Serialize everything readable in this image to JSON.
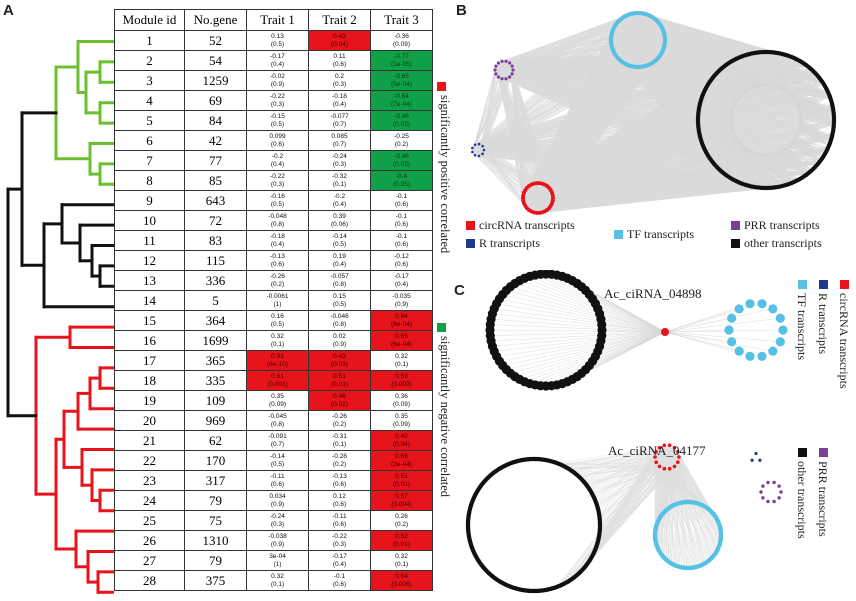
{
  "panel_labels": {
    "a": "A",
    "b": "B",
    "c": "C"
  },
  "table": {
    "headers": [
      "Module id",
      "No.gene",
      "Trait 1",
      "Trait 2",
      "Trait 3"
    ],
    "rows": [
      {
        "id": "1",
        "n": "52",
        "t": [
          [
            "0.13",
            "(0.5)",
            ""
          ],
          [
            "0.43",
            "(0.04)",
            "pos"
          ],
          [
            "-0.36",
            "(0.09)",
            ""
          ]
        ]
      },
      {
        "id": "2",
        "n": "54",
        "t": [
          [
            "-0.17",
            "(0.4)",
            ""
          ],
          [
            "0.11",
            "(0.6)",
            ""
          ],
          [
            "-0.77",
            "(1e-05)",
            "neg"
          ]
        ]
      },
      {
        "id": "3",
        "n": "1259",
        "t": [
          [
            "-0.02",
            "(0.9)",
            ""
          ],
          [
            "0.2",
            "(0.3)",
            ""
          ],
          [
            "-0.65",
            "(5e-04)",
            "neg"
          ]
        ]
      },
      {
        "id": "4",
        "n": "69",
        "t": [
          [
            "-0.22",
            "(0.3)",
            ""
          ],
          [
            "-0.18",
            "(0.4)",
            ""
          ],
          [
            "-0.64",
            "(7e-04)",
            "neg"
          ]
        ]
      },
      {
        "id": "5",
        "n": "84",
        "t": [
          [
            "-0.15",
            "(0.5)",
            ""
          ],
          [
            "-0.077",
            "(0.7)",
            ""
          ],
          [
            "-0.46",
            "(0.02)",
            "neg"
          ]
        ]
      },
      {
        "id": "6",
        "n": "42",
        "t": [
          [
            "0.099",
            "(0.6)",
            ""
          ],
          [
            "0.085",
            "(0.7)",
            ""
          ],
          [
            "-0.25",
            "(0.2)",
            ""
          ]
        ]
      },
      {
        "id": "7",
        "n": "77",
        "t": [
          [
            "-0.2",
            "(0.4)",
            ""
          ],
          [
            "-0.24",
            "(0.3)",
            ""
          ],
          [
            "-0.46",
            "(0.02)",
            "neg"
          ]
        ]
      },
      {
        "id": "8",
        "n": "85",
        "t": [
          [
            "-0.22",
            "(0.3)",
            ""
          ],
          [
            "-0.32",
            "(0.1)",
            ""
          ],
          [
            "-0.4",
            "(0.05)",
            "neg"
          ]
        ]
      },
      {
        "id": "9",
        "n": "643",
        "t": [
          [
            "-0.16",
            "(0.5)",
            ""
          ],
          [
            "-0.2",
            "(0.4)",
            ""
          ],
          [
            "-0.1",
            "(0.6)",
            ""
          ]
        ]
      },
      {
        "id": "10",
        "n": "72",
        "t": [
          [
            "-0.048",
            "(0.8)",
            ""
          ],
          [
            "0.39",
            "(0.06)",
            ""
          ],
          [
            "-0.1",
            "(0.6)",
            ""
          ]
        ]
      },
      {
        "id": "11",
        "n": "83",
        "t": [
          [
            "-0.18",
            "(0.4)",
            ""
          ],
          [
            "-0.14",
            "(0.5)",
            ""
          ],
          [
            "-0.1",
            "(0.6)",
            ""
          ]
        ]
      },
      {
        "id": "12",
        "n": "115",
        "t": [
          [
            "-0.13",
            "(0.6)",
            ""
          ],
          [
            "0.19",
            "(0.4)",
            ""
          ],
          [
            "-0.12",
            "(0.6)",
            ""
          ]
        ]
      },
      {
        "id": "13",
        "n": "336",
        "t": [
          [
            "-0.26",
            "(0.2)",
            ""
          ],
          [
            "-0.057",
            "(0.8)",
            ""
          ],
          [
            "-0.17",
            "(0.4)",
            ""
          ]
        ]
      },
      {
        "id": "14",
        "n": "5",
        "t": [
          [
            "-0.0061",
            "(1)",
            ""
          ],
          [
            "0.15",
            "(0.5)",
            ""
          ],
          [
            "-0.035",
            "(0.9)",
            ""
          ]
        ]
      },
      {
        "id": "15",
        "n": "364",
        "t": [
          [
            "0.16",
            "(0.5)",
            ""
          ],
          [
            "-0.046",
            "(0.8)",
            ""
          ],
          [
            "0.64",
            "(8e-04)",
            "pos"
          ]
        ]
      },
      {
        "id": "16",
        "n": "1699",
        "t": [
          [
            "0.32",
            "(0.1)",
            ""
          ],
          [
            "0.02",
            "(0.9)",
            ""
          ],
          [
            "0.65",
            "(6e-04)",
            "pos"
          ]
        ]
      },
      {
        "id": "17",
        "n": "365",
        "t": [
          [
            "0.91",
            "(6e-10)",
            "pos"
          ],
          [
            "0.43",
            "(0.03)",
            "pos"
          ],
          [
            "0.32",
            "(0.1)",
            ""
          ]
        ]
      },
      {
        "id": "18",
        "n": "335",
        "t": [
          [
            "0.61",
            "(0.001)",
            "pos"
          ],
          [
            "0.51",
            "(0.01)",
            "pos"
          ],
          [
            "0.59",
            "(0.003)",
            "pos"
          ]
        ]
      },
      {
        "id": "19",
        "n": "109",
        "t": [
          [
            "0.35",
            "(0.09)",
            ""
          ],
          [
            "0.46",
            "(0.02)",
            "pos"
          ],
          [
            "0.36",
            "(0.09)",
            ""
          ]
        ]
      },
      {
        "id": "20",
        "n": "969",
        "t": [
          [
            "-0.045",
            "(0.8)",
            ""
          ],
          [
            "-0.26",
            "(0.2)",
            ""
          ],
          [
            "0.35",
            "(0.09)",
            ""
          ]
        ]
      },
      {
        "id": "21",
        "n": "62",
        "t": [
          [
            "-0.091",
            "(0.7)",
            ""
          ],
          [
            "-0.31",
            "(0.1)",
            ""
          ],
          [
            "0.42",
            "(0.04)",
            "pos"
          ]
        ]
      },
      {
        "id": "22",
        "n": "170",
        "t": [
          [
            "-0.14",
            "(0.5)",
            ""
          ],
          [
            "-0.28",
            "(0.2)",
            ""
          ],
          [
            "0.68",
            "(2e-04)",
            "pos"
          ]
        ]
      },
      {
        "id": "23",
        "n": "317",
        "t": [
          [
            "-0.11",
            "(0.6)",
            ""
          ],
          [
            "-0.13",
            "(0.6)",
            ""
          ],
          [
            "0.51",
            "(0.01)",
            "pos"
          ]
        ]
      },
      {
        "id": "24",
        "n": "79",
        "t": [
          [
            "0.034",
            "(0.9)",
            ""
          ],
          [
            "0.12",
            "(0.6)",
            ""
          ],
          [
            "0.57",
            "(0.004)",
            "pos"
          ]
        ]
      },
      {
        "id": "25",
        "n": "75",
        "t": [
          [
            "-0.24",
            "(0.3)",
            ""
          ],
          [
            "-0.11",
            "(0.6)",
            ""
          ],
          [
            "0.26",
            "(0.2)",
            ""
          ]
        ]
      },
      {
        "id": "26",
        "n": "1310",
        "t": [
          [
            "-0.038",
            "(0.9)",
            ""
          ],
          [
            "-0.22",
            "(0.3)",
            ""
          ],
          [
            "0.52",
            "(0.01)",
            "pos"
          ]
        ]
      },
      {
        "id": "27",
        "n": "79",
        "t": [
          [
            "3e-04",
            "(1)",
            ""
          ],
          [
            "-0.17",
            "(0.4)",
            ""
          ],
          [
            "0.32",
            "(0.1)",
            ""
          ]
        ]
      },
      {
        "id": "28",
        "n": "375",
        "t": [
          [
            "0.32",
            "(0.1)",
            ""
          ],
          [
            "-0.1",
            "(0.6)",
            ""
          ],
          [
            "0.54",
            "(0.006)",
            "pos"
          ]
        ]
      }
    ]
  },
  "legend_a": {
    "positive": "significantly positive correlated",
    "negative": "significantly negative correlated",
    "positive_color": "#e8141b",
    "negative_color": "#10a047"
  },
  "legend_b": {
    "circ": "circRNA transcripts",
    "r": "R transcripts",
    "tf": "TF transcripts",
    "prr": "PRR transcripts",
    "other": "other transcripts",
    "colors": {
      "circ": "#e8141b",
      "r": "#1d3a8c",
      "tf": "#56c1e2",
      "prr": "#7b3f98",
      "other": "#111111"
    }
  },
  "panel_c": {
    "label1": "Ac_ciRNA_04898",
    "label2": "Ac_ciRNA_04177",
    "legend_top": [
      "circRNA transcripts",
      "R transcripts",
      "TF transcripts"
    ],
    "legend_bottom": [
      "PRR transcripts",
      "other transcripts"
    ]
  }
}
